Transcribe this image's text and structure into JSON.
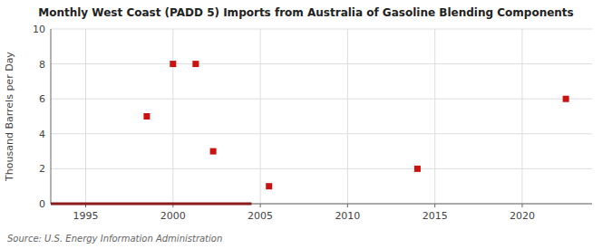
{
  "chart_data": {
    "type": "scatter",
    "title": "Monthly West Coast (PADD 5) Imports from Australia of Gasoline Blending Components",
    "ylabel": "Thousand Barrels per Day",
    "annotations": [
      "Source: U.S. Energy Information Administration"
    ],
    "xlim": [
      1993,
      2024
    ],
    "ylim": [
      0,
      10
    ],
    "xticks": [
      1995,
      2000,
      2005,
      2010,
      2015,
      2020
    ],
    "yticks": [
      0,
      2,
      4,
      6,
      8,
      10
    ],
    "grid": true,
    "series": [
      {
        "type": "line",
        "color": "#8b1a1a",
        "x": [
          1993,
          2004.5
        ],
        "values": [
          0,
          0
        ]
      },
      {
        "type": "scatter",
        "color": "#cc1111",
        "marker": "square",
        "x": [
          1998.5,
          2000.0,
          2001.3,
          2002.3,
          2005.5,
          2014.0,
          2022.5
        ],
        "values": [
          5,
          8,
          8,
          3,
          1,
          2,
          6
        ]
      }
    ]
  }
}
